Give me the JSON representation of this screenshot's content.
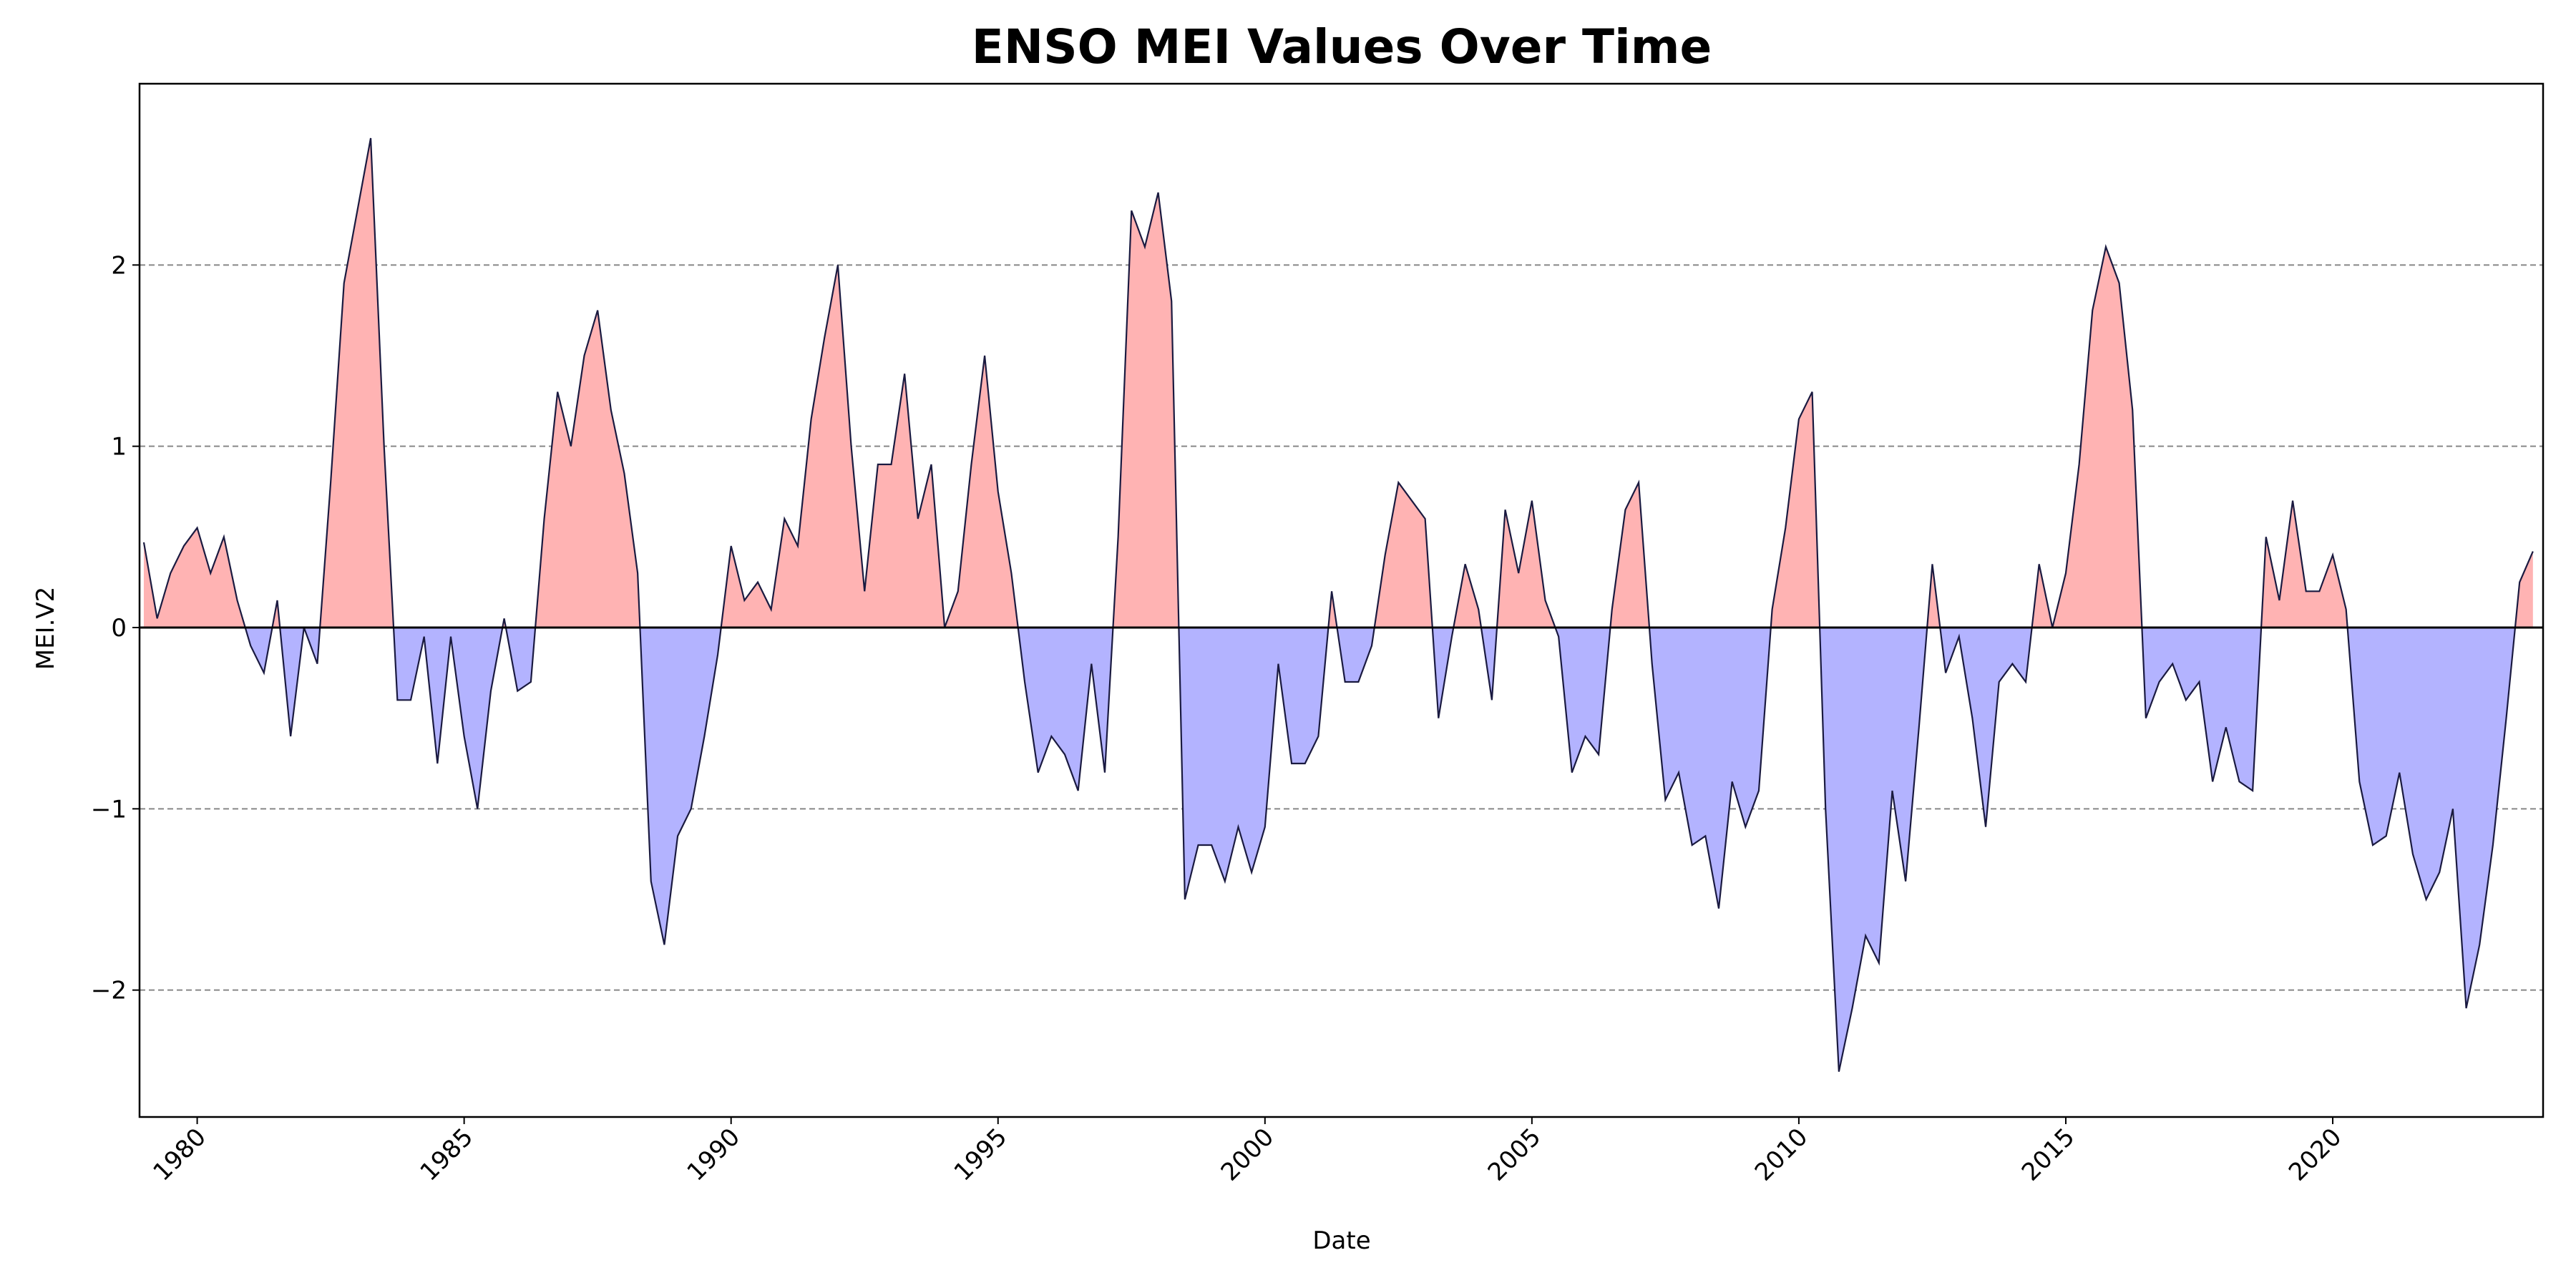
{
  "chart_data": {
    "type": "area",
    "title": "ENSO MEI Values Over Time",
    "x_label": "Date",
    "y_label": "MEI.V2",
    "x": [
      1979,
      1979.25,
      1979.5,
      1979.75,
      1980,
      1980.25,
      1980.5,
      1980.75,
      1981,
      1981.25,
      1981.5,
      1981.75,
      1982,
      1982.25,
      1982.5,
      1982.75,
      1983,
      1983.25,
      1983.5,
      1983.75,
      1984,
      1984.25,
      1984.5,
      1984.75,
      1985,
      1985.25,
      1985.5,
      1985.75,
      1986,
      1986.25,
      1986.5,
      1986.75,
      1987,
      1987.25,
      1987.5,
      1987.75,
      1988,
      1988.25,
      1988.5,
      1988.75,
      1989,
      1989.25,
      1989.5,
      1989.75,
      1990,
      1990.25,
      1990.5,
      1990.75,
      1991,
      1991.25,
      1991.5,
      1991.75,
      1992,
      1992.25,
      1992.5,
      1992.75,
      1993,
      1993.25,
      1993.5,
      1993.75,
      1994,
      1994.25,
      1994.5,
      1994.75,
      1995,
      1995.25,
      1995.5,
      1995.75,
      1996,
      1996.25,
      1996.5,
      1996.75,
      1997,
      1997.25,
      1997.5,
      1997.75,
      1998,
      1998.25,
      1998.5,
      1998.75,
      1999,
      1999.25,
      1999.5,
      1999.75,
      2000,
      2000.25,
      2000.5,
      2000.75,
      2001,
      2001.25,
      2001.5,
      2001.75,
      2002,
      2002.25,
      2002.5,
      2002.75,
      2003,
      2003.25,
      2003.5,
      2003.75,
      2004,
      2004.25,
      2004.5,
      2004.75,
      2005,
      2005.25,
      2005.5,
      2005.75,
      2006,
      2006.25,
      2006.5,
      2006.75,
      2007,
      2007.25,
      2007.5,
      2007.75,
      2008,
      2008.25,
      2008.5,
      2008.75,
      2009,
      2009.25,
      2009.5,
      2009.75,
      2010,
      2010.25,
      2010.5,
      2010.75,
      2011,
      2011.25,
      2011.5,
      2011.75,
      2012,
      2012.25,
      2012.5,
      2012.75,
      2013,
      2013.25,
      2013.5,
      2013.75,
      2014,
      2014.25,
      2014.5,
      2014.75,
      2015,
      2015.25,
      2015.5,
      2015.75,
      2016,
      2016.25,
      2016.5,
      2016.75,
      2017,
      2017.25,
      2017.5,
      2017.75,
      2018,
      2018.25,
      2018.5,
      2018.75,
      2019,
      2019.25,
      2019.5,
      2019.75,
      2020,
      2020.25,
      2020.5,
      2020.75,
      2021,
      2021.25,
      2021.5,
      2021.75,
      2022,
      2022.25,
      2022.5,
      2022.75,
      2023,
      2023.25,
      2023.5,
      2023.75
    ],
    "values": [
      0.47,
      0.05,
      0.3,
      0.45,
      0.55,
      0.3,
      0.5,
      0.15,
      -0.1,
      -0.25,
      0.15,
      -0.6,
      0.0,
      -0.2,
      0.8,
      1.9,
      2.3,
      2.7,
      1.0,
      -0.4,
      -0.4,
      -0.05,
      -0.75,
      -0.05,
      -0.6,
      -1.0,
      -0.35,
      0.05,
      -0.35,
      -0.3,
      0.6,
      1.3,
      1.0,
      1.5,
      1.75,
      1.2,
      0.85,
      0.3,
      -1.4,
      -1.75,
      -1.15,
      -1.0,
      -0.6,
      -0.15,
      0.45,
      0.15,
      0.25,
      0.1,
      0.6,
      0.45,
      1.15,
      1.6,
      2.0,
      1.0,
      0.2,
      0.9,
      0.9,
      1.4,
      0.6,
      0.9,
      0.0,
      0.2,
      0.9,
      1.5,
      0.75,
      0.3,
      -0.3,
      -0.8,
      -0.6,
      -0.7,
      -0.9,
      -0.2,
      -0.8,
      0.5,
      2.3,
      2.1,
      2.4,
      1.8,
      -1.5,
      -1.2,
      -1.2,
      -1.4,
      -1.1,
      -1.35,
      -1.1,
      -0.2,
      -0.75,
      -0.75,
      -0.6,
      0.2,
      -0.3,
      -0.3,
      -0.1,
      0.4,
      0.8,
      0.7,
      0.6,
      -0.5,
      -0.05,
      0.35,
      0.1,
      -0.4,
      0.65,
      0.3,
      0.7,
      0.15,
      -0.05,
      -0.8,
      -0.6,
      -0.7,
      0.1,
      0.65,
      0.8,
      -0.2,
      -0.95,
      -0.8,
      -1.2,
      -1.15,
      -1.55,
      -0.85,
      -1.1,
      -0.9,
      0.1,
      0.55,
      1.15,
      1.3,
      -1.0,
      -2.45,
      -2.1,
      -1.7,
      -1.85,
      -0.9,
      -1.4,
      -0.55,
      0.35,
      -0.25,
      -0.05,
      -0.5,
      -1.1,
      -0.3,
      -0.2,
      -0.3,
      0.35,
      0.0,
      0.3,
      0.9,
      1.75,
      2.1,
      1.9,
      1.2,
      -0.5,
      -0.3,
      -0.2,
      -0.4,
      -0.3,
      -0.85,
      -0.55,
      -0.85,
      -0.9,
      0.5,
      0.15,
      0.7,
      0.2,
      0.2,
      0.4,
      0.1,
      -0.85,
      -1.2,
      -1.15,
      -0.8,
      -1.25,
      -1.5,
      -1.35,
      -1.0,
      -2.1,
      -1.75,
      -1.2,
      -0.5,
      0.25,
      0.42
    ],
    "color": "#1a1a40",
    "positive_color": "#ffb3b3",
    "negative_color": "#b3b3ff",
    "xlim": [
      1978.92,
      2023.94
    ],
    "xticks": [
      1980,
      1985,
      1990,
      1995,
      2000,
      2005,
      2010,
      2015,
      2020
    ],
    "ylim": [
      -2.7,
      3.0
    ],
    "yticks": [
      {
        "value": -2,
        "label": "−2"
      },
      {
        "value": -1,
        "label": "−1"
      },
      0,
      1,
      2
    ],
    "grid": true
  }
}
